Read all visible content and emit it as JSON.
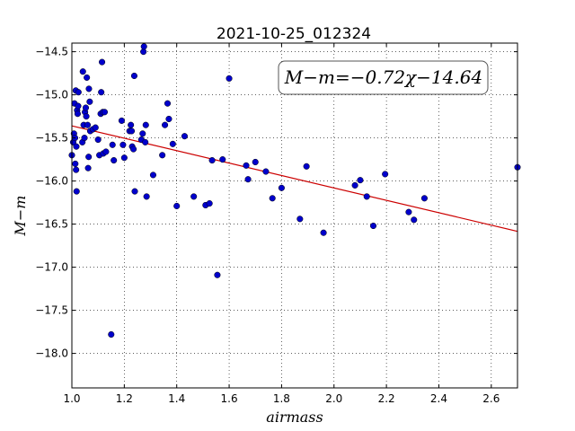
{
  "chart_data": {
    "type": "scatter",
    "title": "2021-10-25_012324",
    "xlabel": "airmass",
    "ylabel": "M−m",
    "annotation": "M−m=−0.72χ−14.64",
    "xlim": [
      1.0,
      2.7
    ],
    "ylim": [
      -18.4,
      -14.4
    ],
    "y_inverted": true,
    "grid": true,
    "x_ticks": [
      1.0,
      1.2,
      1.4,
      1.6,
      1.8,
      2.0,
      2.2,
      2.4,
      2.6
    ],
    "x_tick_labels": [
      "1.0",
      "1.2",
      "1.4",
      "1.6",
      "1.8",
      "2.0",
      "2.2",
      "2.4",
      "2.6"
    ],
    "y_ticks": [
      -14.5,
      -15.0,
      -15.5,
      -16.0,
      -16.5,
      -17.0,
      -17.5,
      -18.0
    ],
    "y_tick_labels": [
      "−14.5",
      "−15.0",
      "−15.5",
      "−16.0",
      "−16.5",
      "−17.0",
      "−17.5",
      "−18.0"
    ],
    "fit": {
      "slope": -0.72,
      "intercept": -14.64,
      "color": "#cc0000"
    },
    "point_color": "#0000cc",
    "points": [
      [
        1.0,
        -15.7
      ],
      [
        1.005,
        -15.55
      ],
      [
        1.008,
        -15.45
      ],
      [
        1.01,
        -15.1
      ],
      [
        1.012,
        -15.5
      ],
      [
        1.013,
        -15.8
      ],
      [
        1.015,
        -14.95
      ],
      [
        1.016,
        -15.87
      ],
      [
        1.017,
        -15.6
      ],
      [
        1.018,
        -16.12
      ],
      [
        1.02,
        -15.18
      ],
      [
        1.022,
        -15.22
      ],
      [
        1.024,
        -15.13
      ],
      [
        1.025,
        -14.97
      ],
      [
        1.04,
        -15.55
      ],
      [
        1.042,
        -14.73
      ],
      [
        1.045,
        -15.35
      ],
      [
        1.048,
        -15.5
      ],
      [
        1.05,
        -15.2
      ],
      [
        1.053,
        -15.15
      ],
      [
        1.055,
        -15.25
      ],
      [
        1.057,
        -14.8
      ],
      [
        1.06,
        -15.35
      ],
      [
        1.062,
        -15.85
      ],
      [
        1.064,
        -15.72
      ],
      [
        1.065,
        -14.93
      ],
      [
        1.068,
        -15.08
      ],
      [
        1.07,
        -15.42
      ],
      [
        1.08,
        -15.4
      ],
      [
        1.09,
        -15.38
      ],
      [
        1.1,
        -15.52
      ],
      [
        1.105,
        -15.7
      ],
      [
        1.11,
        -15.22
      ],
      [
        1.112,
        -14.97
      ],
      [
        1.115,
        -14.62
      ],
      [
        1.118,
        -15.2
      ],
      [
        1.12,
        -15.68
      ],
      [
        1.125,
        -15.2
      ],
      [
        1.13,
        -15.66
      ],
      [
        1.15,
        -17.78
      ],
      [
        1.155,
        -15.58
      ],
      [
        1.16,
        -15.76
      ],
      [
        1.19,
        -15.3
      ],
      [
        1.195,
        -15.58
      ],
      [
        1.2,
        -15.73
      ],
      [
        1.22,
        -15.42
      ],
      [
        1.225,
        -15.35
      ],
      [
        1.228,
        -15.42
      ],
      [
        1.23,
        -15.6
      ],
      [
        1.235,
        -15.63
      ],
      [
        1.238,
        -14.78
      ],
      [
        1.24,
        -16.12
      ],
      [
        1.265,
        -15.52
      ],
      [
        1.27,
        -15.45
      ],
      [
        1.273,
        -14.5
      ],
      [
        1.275,
        -14.44
      ],
      [
        1.28,
        -15.55
      ],
      [
        1.282,
        -15.35
      ],
      [
        1.285,
        -16.18
      ],
      [
        1.31,
        -15.93
      ],
      [
        1.345,
        -15.7
      ],
      [
        1.355,
        -15.35
      ],
      [
        1.365,
        -15.1
      ],
      [
        1.37,
        -15.28
      ],
      [
        1.385,
        -15.57
      ],
      [
        1.4,
        -16.29
      ],
      [
        1.43,
        -15.48
      ],
      [
        1.465,
        -16.18
      ],
      [
        1.51,
        -16.28
      ],
      [
        1.525,
        -16.26
      ],
      [
        1.535,
        -15.76
      ],
      [
        1.555,
        -17.09
      ],
      [
        1.575,
        -15.75
      ],
      [
        1.6,
        -14.81
      ],
      [
        1.665,
        -15.82
      ],
      [
        1.672,
        -15.98
      ],
      [
        1.7,
        -15.78
      ],
      [
        1.74,
        -15.89
      ],
      [
        1.765,
        -16.2
      ],
      [
        1.8,
        -16.08
      ],
      [
        1.87,
        -16.44
      ],
      [
        1.895,
        -15.83
      ],
      [
        1.96,
        -16.6
      ],
      [
        2.08,
        -16.05
      ],
      [
        2.1,
        -15.99
      ],
      [
        2.125,
        -16.18
      ],
      [
        2.15,
        -16.52
      ],
      [
        2.195,
        -15.92
      ],
      [
        2.285,
        -16.36
      ],
      [
        2.305,
        -16.45
      ],
      [
        2.345,
        -16.2
      ],
      [
        2.7,
        -15.84
      ]
    ]
  }
}
